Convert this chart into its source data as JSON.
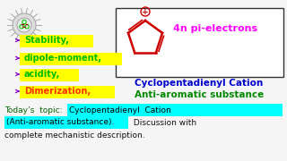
{
  "bg_color": "#f5f5f5",
  "bullet_items": [
    {
      "text": "Stability,",
      "color": "#00bb00",
      "bg": "#ffff00"
    },
    {
      "text": "dipole-moment,",
      "color": "#00bb00",
      "bg": "#ffff00"
    },
    {
      "text": "acidity,",
      "color": "#00bb00",
      "bg": "#ffff00"
    },
    {
      "text": "Dimerization,",
      "color": "#ff3300",
      "bg": "#ffff00"
    }
  ],
  "bullet_color": "#8800cc",
  "box_label": "4n pi-electrons",
  "box_label_color": "#ff00ff",
  "cation_label1": "Cyclopentadienyl Cation",
  "cation_label2": "Anti-aromatic substance",
  "cation_label1_color": "#0000cc",
  "cation_label2_color": "#008800",
  "today_prefix": "Today’s  topic:",
  "today_prefix_color": "#006600",
  "highlight_line1": "Cyclopentadienyl  Cation",
  "highlight_line2": "(Anti-aromatic substance).",
  "highlight_bg": "#00ffff",
  "highlight_color": "#000000",
  "rest_line1": " Discussion with",
  "rest_line2": "complete mechanistic description.",
  "rest_color": "#111111",
  "molecule_color": "#cc0000",
  "molecule_box_color": "#333333",
  "logo_spike_color": "#999999",
  "logo_outer_color": "#cccccc",
  "logo_ring_color": "#00cc00",
  "logo_face_color": "#990000"
}
